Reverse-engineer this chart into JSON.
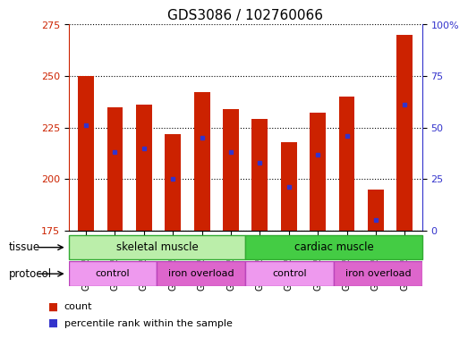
{
  "title": "GDS3086 / 102760066",
  "samples": [
    "GSM245354",
    "GSM245355",
    "GSM245356",
    "GSM245357",
    "GSM245358",
    "GSM245359",
    "GSM245348",
    "GSM245349",
    "GSM245350",
    "GSM245351",
    "GSM245352",
    "GSM245353"
  ],
  "bar_tops": [
    250,
    235,
    236,
    222,
    242,
    234,
    229,
    218,
    232,
    240,
    195,
    270
  ],
  "bar_bottom": 175,
  "blue_markers": [
    226,
    213,
    215,
    200,
    220,
    213,
    208,
    196,
    212,
    221,
    180,
    236
  ],
  "ylim": [
    175,
    275
  ],
  "y_ticks_left": [
    175,
    200,
    225,
    250,
    275
  ],
  "bar_color": "#cc2200",
  "blue_color": "#3333cc",
  "tissue_label_0": "skeletal muscle",
  "tissue_label_1": "cardiac muscle",
  "tissue_color_0": "#bbeeaa",
  "tissue_color_1": "#44cc44",
  "tissue_edge_color": "#33aa33",
  "protocol_labels": [
    "control",
    "iron overload",
    "control",
    "iron overload"
  ],
  "protocol_color_light": "#ee99ee",
  "protocol_color_dark": "#dd66cc",
  "protocol_edge_color": "#bb44bb",
  "bg_color": "white",
  "title_fontsize": 11,
  "tick_label_fontsize": 7,
  "legend_fontsize": 8,
  "row_label_fontsize": 8.5
}
